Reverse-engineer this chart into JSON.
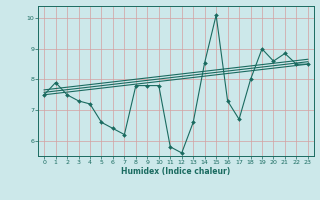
{
  "xlabel": "Humidex (Indice chaleur)",
  "ylabel": "",
  "bg_color": "#cce8ea",
  "line_color": "#1a6b60",
  "grid_color": "#d4a0a0",
  "xlim": [
    -0.5,
    23.5
  ],
  "ylim": [
    5.5,
    10.4
  ],
  "xticks": [
    0,
    1,
    2,
    3,
    4,
    5,
    6,
    7,
    8,
    9,
    10,
    11,
    12,
    13,
    14,
    15,
    16,
    17,
    18,
    19,
    20,
    21,
    22,
    23
  ],
  "yticks": [
    6,
    7,
    8,
    9,
    10
  ],
  "lines": [
    {
      "x": [
        0,
        1,
        2,
        3,
        4,
        5,
        6,
        7,
        8,
        9,
        10,
        11,
        12,
        13,
        14,
        15,
        16,
        17,
        18,
        19,
        20,
        21,
        22,
        23
      ],
      "y": [
        7.5,
        7.9,
        7.5,
        7.3,
        7.2,
        6.6,
        6.4,
        6.2,
        7.8,
        7.8,
        7.8,
        5.8,
        5.6,
        6.6,
        8.55,
        10.1,
        7.3,
        6.7,
        8.0,
        9.0,
        8.6,
        8.85,
        8.5,
        8.5
      ]
    },
    {
      "x": [
        0,
        23
      ],
      "y": [
        7.5,
        8.5
      ]
    },
    {
      "x": [
        0,
        23
      ],
      "y": [
        7.58,
        8.58
      ]
    },
    {
      "x": [
        0,
        23
      ],
      "y": [
        7.66,
        8.66
      ]
    }
  ]
}
